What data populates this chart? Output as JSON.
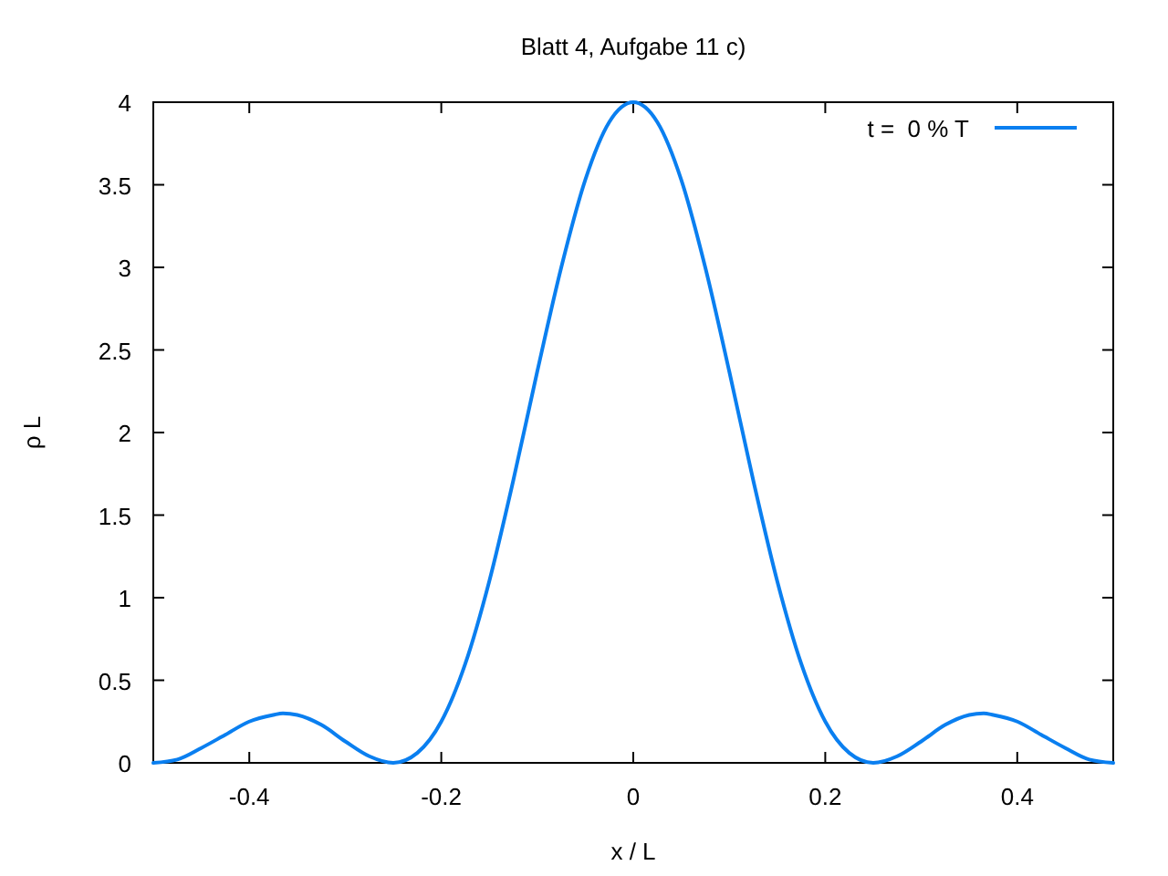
{
  "chart_data": {
    "type": "line",
    "title": "Blatt 4, Aufgabe 11 c)",
    "xlabel": "x / L",
    "ylabel": "ρ L",
    "x": [
      -0.5,
      -0.475,
      -0.45,
      -0.425,
      -0.4,
      -0.375,
      -0.365,
      -0.35,
      -0.325,
      -0.3,
      -0.275,
      -0.25,
      -0.225,
      -0.2,
      -0.175,
      -0.15,
      -0.125,
      -0.1,
      -0.075,
      -0.05,
      -0.025,
      0,
      0.025,
      0.05,
      0.075,
      0.1,
      0.125,
      0.15,
      0.175,
      0.2,
      0.225,
      0.25,
      0.275,
      0.3,
      0.325,
      0.35,
      0.365,
      0.375,
      0.4,
      0.425,
      0.45,
      0.475,
      0.5
    ],
    "series": [
      {
        "name": "t =  0 % T",
        "color": "#0a7ff0",
        "values": [
          0,
          0.02,
          0.09,
          0.17,
          0.25,
          0.29,
          0.3,
          0.29,
          0.23,
          0.13,
          0.04,
          0,
          0.06,
          0.25,
          0.6,
          1.1,
          1.71,
          2.37,
          3.0,
          3.53,
          3.88,
          4,
          3.88,
          3.53,
          3.0,
          2.37,
          1.71,
          1.1,
          0.6,
          0.25,
          0.06,
          0,
          0.04,
          0.13,
          0.23,
          0.29,
          0.3,
          0.29,
          0.25,
          0.17,
          0.09,
          0.02,
          0
        ]
      }
    ],
    "xlim": [
      -0.5,
      0.5
    ],
    "xticks": [
      -0.4,
      -0.2,
      0,
      0.2,
      0.4
    ],
    "ylim": [
      0,
      4
    ],
    "yticks": [
      0,
      0.5,
      1,
      1.5,
      2,
      2.5,
      3,
      3.5,
      4
    ],
    "legend": "top right",
    "grid": false,
    "marker": "none",
    "line_style": "solid"
  }
}
